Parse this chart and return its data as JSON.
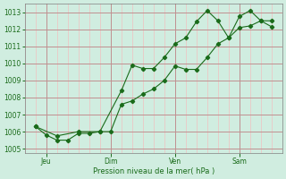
{
  "xlabel": "Pression niveau de la mer( hPa )",
  "bg_color": "#d0ede0",
  "grid_fine_color": "#f0c0c0",
  "grid_coarse_color": "#c09090",
  "line_color": "#1a6b1a",
  "ylim": [
    1004.75,
    1013.5
  ],
  "yticks": [
    1005,
    1006,
    1007,
    1008,
    1009,
    1010,
    1011,
    1012,
    1013
  ],
  "xlim": [
    0,
    12
  ],
  "day_positions": [
    1,
    4,
    7,
    10
  ],
  "day_labels": [
    "Jeu",
    "Dim",
    "Ven",
    "Sam"
  ],
  "series1_x": [
    0.5,
    1.0,
    1.5,
    2.0,
    2.5,
    3.0,
    3.5,
    4.0,
    4.5,
    5.0,
    5.5,
    6.0,
    6.5,
    7.0,
    7.5,
    8.0,
    8.5,
    9.0,
    9.5,
    10.0,
    10.5,
    11.0,
    11.5
  ],
  "series1_y": [
    1006.3,
    1005.8,
    1005.5,
    1005.5,
    1005.9,
    1005.9,
    1006.0,
    1006.0,
    1007.6,
    1007.8,
    1008.2,
    1008.5,
    1009.0,
    1009.85,
    1009.65,
    1009.65,
    1010.35,
    1011.15,
    1011.5,
    1012.75,
    1013.1,
    1012.5,
    1012.15
  ],
  "series2_x": [
    0.5,
    1.5,
    2.5,
    3.5,
    4.5,
    5.0,
    5.5,
    6.0,
    6.5,
    7.0,
    7.5,
    8.0,
    8.5,
    9.0,
    9.5,
    10.0,
    10.5,
    11.0,
    11.5
  ],
  "series2_y": [
    1006.3,
    1005.75,
    1006.0,
    1006.0,
    1008.4,
    1009.9,
    1009.7,
    1009.7,
    1010.35,
    1011.15,
    1011.5,
    1012.45,
    1013.1,
    1012.5,
    1011.5,
    1012.1,
    1012.2,
    1012.5,
    1012.5
  ]
}
